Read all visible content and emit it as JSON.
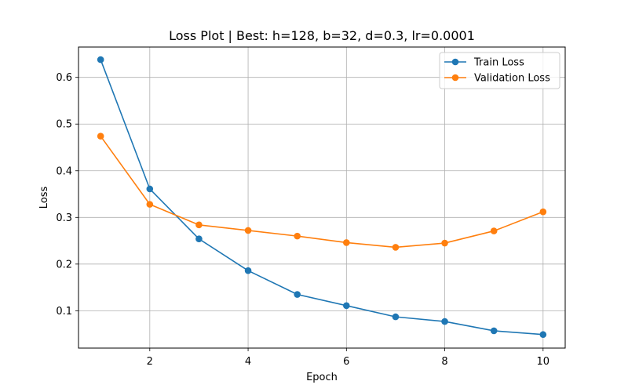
{
  "chart_data": {
    "type": "line",
    "title": "Loss Plot | Best: h=128, b=32, d=0.3, lr=0.0001",
    "xlabel": "Epoch",
    "ylabel": "Loss",
    "x": [
      1,
      2,
      3,
      4,
      5,
      6,
      7,
      8,
      9,
      10
    ],
    "xlim": [
      0.55,
      10.45
    ],
    "ylim": [
      0.02,
      0.665
    ],
    "xticks": [
      2,
      4,
      6,
      8,
      10
    ],
    "xtick_labels": [
      "2",
      "4",
      "6",
      "8",
      "10"
    ],
    "yticks": [
      0.1,
      0.2,
      0.3,
      0.4,
      0.5,
      0.6
    ],
    "ytick_labels": [
      "0.1",
      "0.2",
      "0.3",
      "0.4",
      "0.5",
      "0.6"
    ],
    "grid": true,
    "legend_position": "top-right",
    "series": [
      {
        "name": "Train Loss",
        "color": "#1f77b4",
        "marker": "circle",
        "values": [
          0.638,
          0.361,
          0.254,
          0.186,
          0.135,
          0.111,
          0.087,
          0.077,
          0.057,
          0.049
        ]
      },
      {
        "name": "Validation Loss",
        "color": "#ff7f0e",
        "marker": "circle",
        "values": [
          0.474,
          0.328,
          0.284,
          0.272,
          0.26,
          0.246,
          0.236,
          0.245,
          0.271,
          0.312
        ]
      }
    ]
  }
}
